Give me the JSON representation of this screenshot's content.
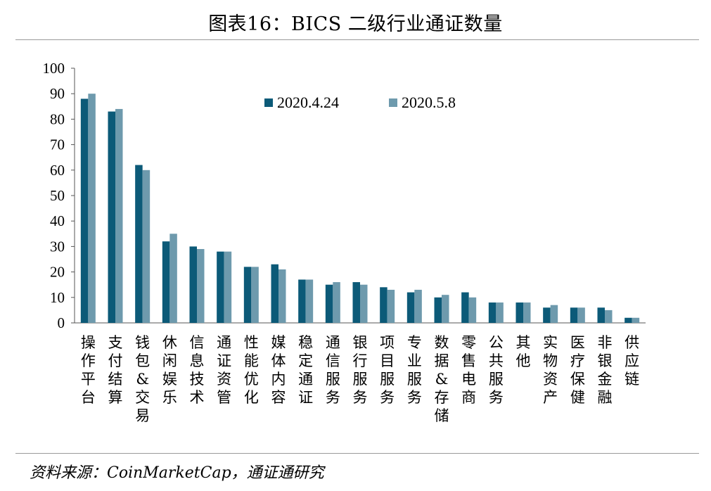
{
  "title": "图表16：BICS 二级行业通证数量",
  "source": "资料来源：CoinMarketCap，通证通研究",
  "colors": {
    "series1": "#0c5a78",
    "series2": "#6e9aad",
    "axis": "#555555"
  },
  "chart_data": {
    "type": "bar",
    "categories": [
      "操作平台",
      "支付结算",
      "钱包&交易",
      "休闲娱乐",
      "信息技术",
      "通证资管",
      "性能优化",
      "媒体内容",
      "稳定通证",
      "通信服务",
      "银行服务",
      "项目服务",
      "专业服务",
      "数据&存储",
      "零售电商",
      "公共服务",
      "其他",
      "实物资产",
      "医疗保健",
      "非银金融",
      "供应链"
    ],
    "series": [
      {
        "name": "2020.4.24",
        "values": [
          88,
          83,
          62,
          32,
          30,
          28,
          22,
          23,
          17,
          15,
          16,
          14,
          12,
          10,
          12,
          8,
          8,
          6,
          6,
          6,
          2
        ]
      },
      {
        "name": "2020.5.8",
        "values": [
          90,
          84,
          60,
          35,
          29,
          28,
          22,
          21,
          17,
          16,
          15,
          13,
          13,
          11,
          10,
          8,
          8,
          7,
          6,
          5,
          2
        ]
      }
    ],
    "ylim": [
      0,
      100
    ],
    "yticks": [
      0,
      10,
      20,
      30,
      40,
      50,
      60,
      70,
      80,
      90,
      100
    ],
    "legend": "top-center",
    "grid": false
  }
}
